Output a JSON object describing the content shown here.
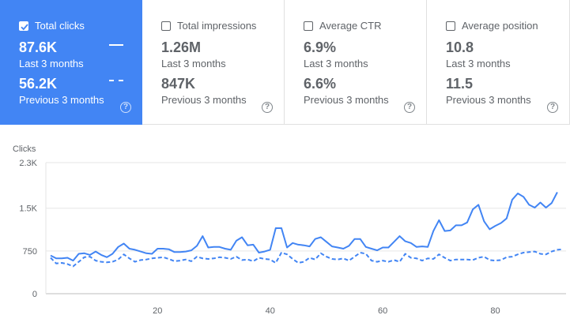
{
  "metrics": [
    {
      "label": "Total clicks",
      "current": "87.6K",
      "current_period": "Last 3 months",
      "previous": "56.2K",
      "previous_period": "Previous 3 months",
      "active": true,
      "help": "?"
    },
    {
      "label": "Total impressions",
      "current": "1.26M",
      "current_period": "Last 3 months",
      "previous": "847K",
      "previous_period": "Previous 3 months",
      "active": false,
      "help": "?"
    },
    {
      "label": "Average CTR",
      "current": "6.9%",
      "current_period": "Last 3 months",
      "previous": "6.6%",
      "previous_period": "Previous 3 months",
      "active": false,
      "help": "?"
    },
    {
      "label": "Average position",
      "current": "10.8",
      "current_period": "Last 3 months",
      "previous": "11.5",
      "previous_period": "Previous 3 months",
      "active": false,
      "help": "?"
    }
  ],
  "colors": {
    "accent": "#4285f4",
    "text": "#5f6368",
    "border": "#e0e0e0"
  },
  "chart_data": {
    "type": "line",
    "ylabel": "Clicks",
    "ylim": [
      0,
      2300
    ],
    "yticks": [
      0,
      750,
      1500,
      2300
    ],
    "ytick_labels": [
      "0",
      "750",
      "1.5K",
      "2.3K"
    ],
    "xlim": [
      1,
      92
    ],
    "xticks": [
      20,
      40,
      60,
      80
    ],
    "xtick_labels": [
      "20",
      "40",
      "60",
      "80"
    ],
    "grid": true,
    "series": [
      {
        "style": "solid",
        "color": "#4285f4",
        "values": [
          670,
          620,
          620,
          630,
          580,
          700,
          710,
          680,
          740,
          680,
          640,
          700,
          820,
          880,
          790,
          770,
          740,
          710,
          700,
          790,
          790,
          780,
          730,
          730,
          740,
          760,
          840,
          1010,
          810,
          820,
          820,
          790,
          770,
          930,
          990,
          850,
          860,
          720,
          740,
          770,
          1150,
          1150,
          810,
          890,
          860,
          850,
          830,
          960,
          990,
          910,
          830,
          810,
          790,
          840,
          960,
          960,
          820,
          790,
          760,
          810,
          810,
          910,
          1010,
          920,
          890,
          820,
          830,
          820,
          1100,
          1290,
          1100,
          1110,
          1200,
          1200,
          1250,
          1480,
          1560,
          1270,
          1130,
          1190,
          1240,
          1320,
          1650,
          1760,
          1700,
          1560,
          1510,
          1600,
          1510,
          1590,
          1780
        ]
      },
      {
        "style": "dashed",
        "color": "#4285f4",
        "values": [
          630,
          530,
          540,
          520,
          480,
          560,
          640,
          650,
          580,
          560,
          550,
          560,
          600,
          690,
          620,
          560,
          590,
          600,
          620,
          630,
          640,
          610,
          570,
          580,
          600,
          570,
          650,
          620,
          610,
          620,
          640,
          630,
          610,
          650,
          590,
          600,
          570,
          630,
          610,
          600,
          540,
          720,
          690,
          610,
          540,
          560,
          630,
          600,
          710,
          650,
          610,
          600,
          620,
          580,
          650,
          720,
          700,
          580,
          560,
          580,
          560,
          590,
          560,
          700,
          630,
          620,
          580,
          620,
          610,
          690,
          630,
          580,
          600,
          600,
          600,
          590,
          630,
          650,
          590,
          580,
          590,
          640,
          650,
          690,
          720,
          730,
          740,
          700,
          690,
          740,
          770,
          780
        ]
      }
    ]
  }
}
